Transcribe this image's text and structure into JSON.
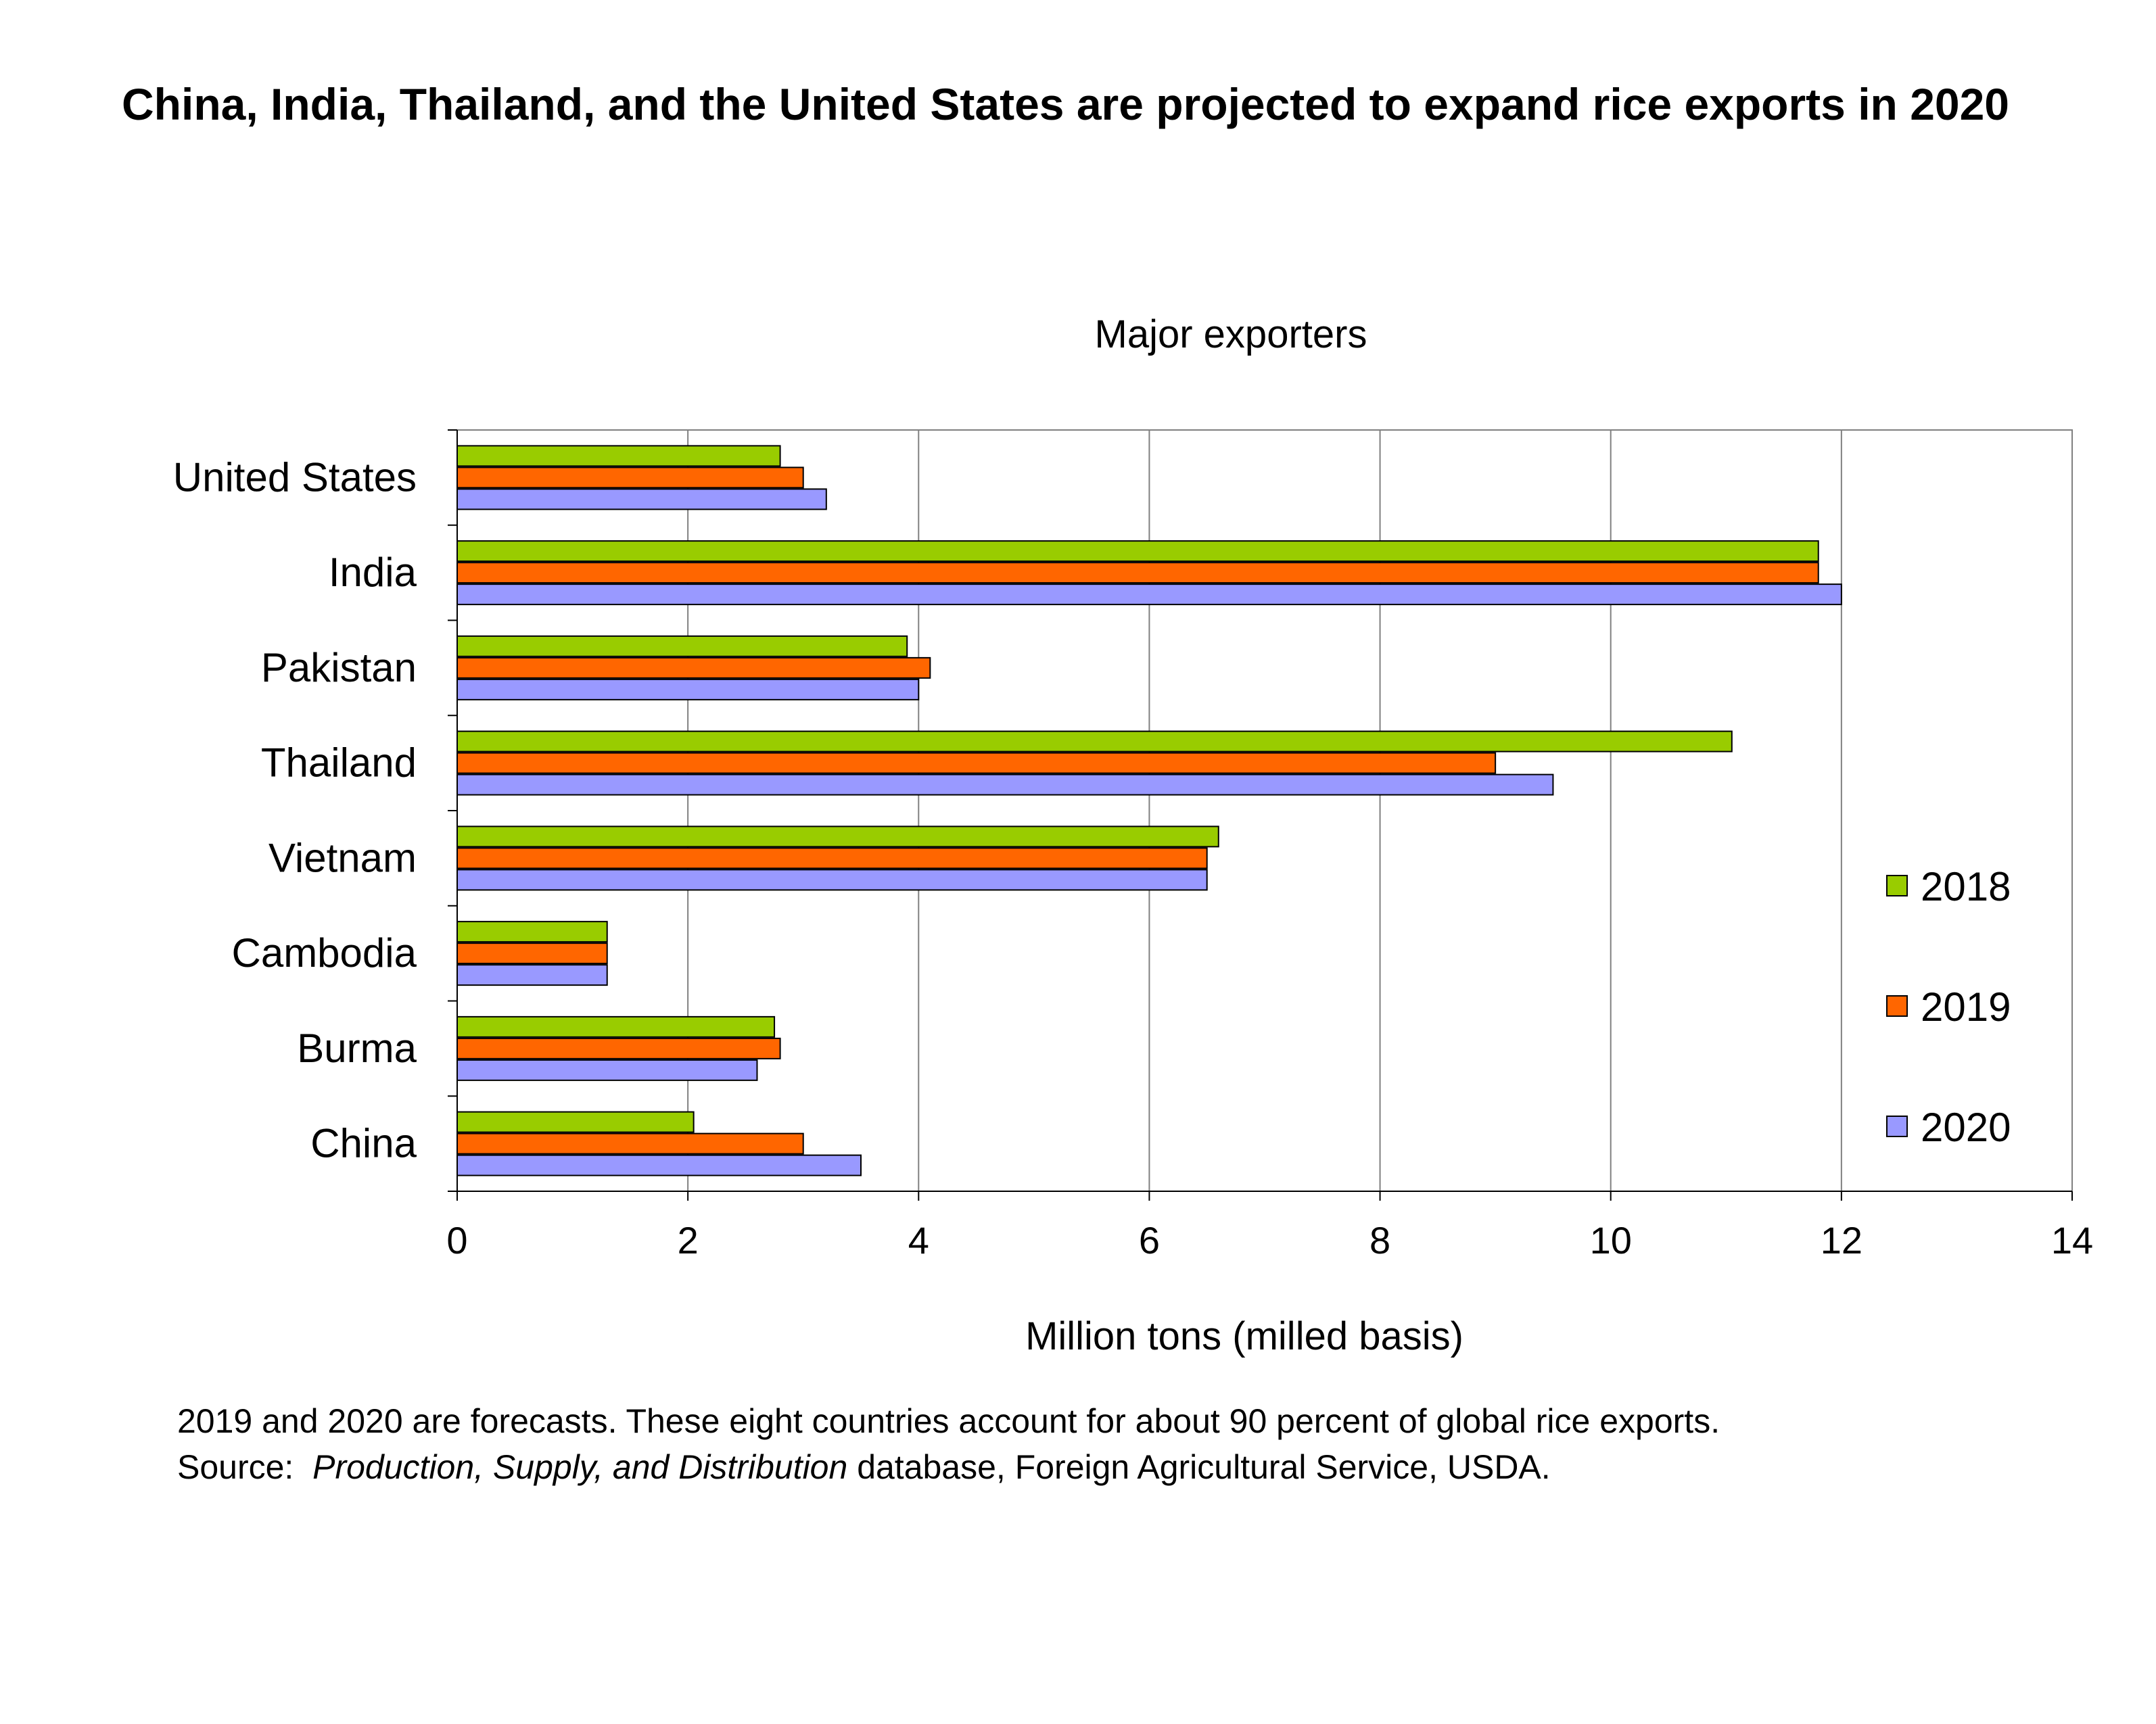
{
  "headline": "China, India, Thailand, and the United States are projected to expand rice exports in 2020",
  "chart_data": {
    "type": "bar",
    "orientation": "horizontal",
    "title": "Major exporters",
    "xlabel": "Million tons (milled basis)",
    "ylabel": "",
    "xlim": [
      0,
      14
    ],
    "xticks": [
      0,
      2,
      4,
      6,
      8,
      10,
      12,
      14
    ],
    "grid": "vertical",
    "legend_position": "right",
    "categories": [
      "United States",
      "India",
      "Pakistan",
      "Thailand",
      "Vietnam",
      "Cambodia",
      "Burma",
      "China"
    ],
    "series": [
      {
        "name": "2018",
        "color": "#99cc00",
        "values": [
          2.8,
          11.8,
          3.9,
          11.05,
          6.6,
          1.3,
          2.75,
          2.05
        ]
      },
      {
        "name": "2019",
        "color": "#ff6600",
        "values": [
          3.0,
          11.8,
          4.1,
          9.0,
          6.5,
          1.3,
          2.8,
          3.0
        ]
      },
      {
        "name": "2020",
        "color": "#9999ff",
        "values": [
          3.2,
          12.0,
          4.0,
          9.5,
          6.5,
          1.3,
          2.6,
          3.5
        ]
      }
    ]
  },
  "footnote": {
    "line1": "2019 and 2020 are forecasts. These eight countries account for about 90 percent of global rice exports.",
    "source_prefix": "Source:  ",
    "source_title": "Production, Supply, and Distribution",
    "source_suffix": " database, Foreign Agricultural Service, USDA."
  }
}
